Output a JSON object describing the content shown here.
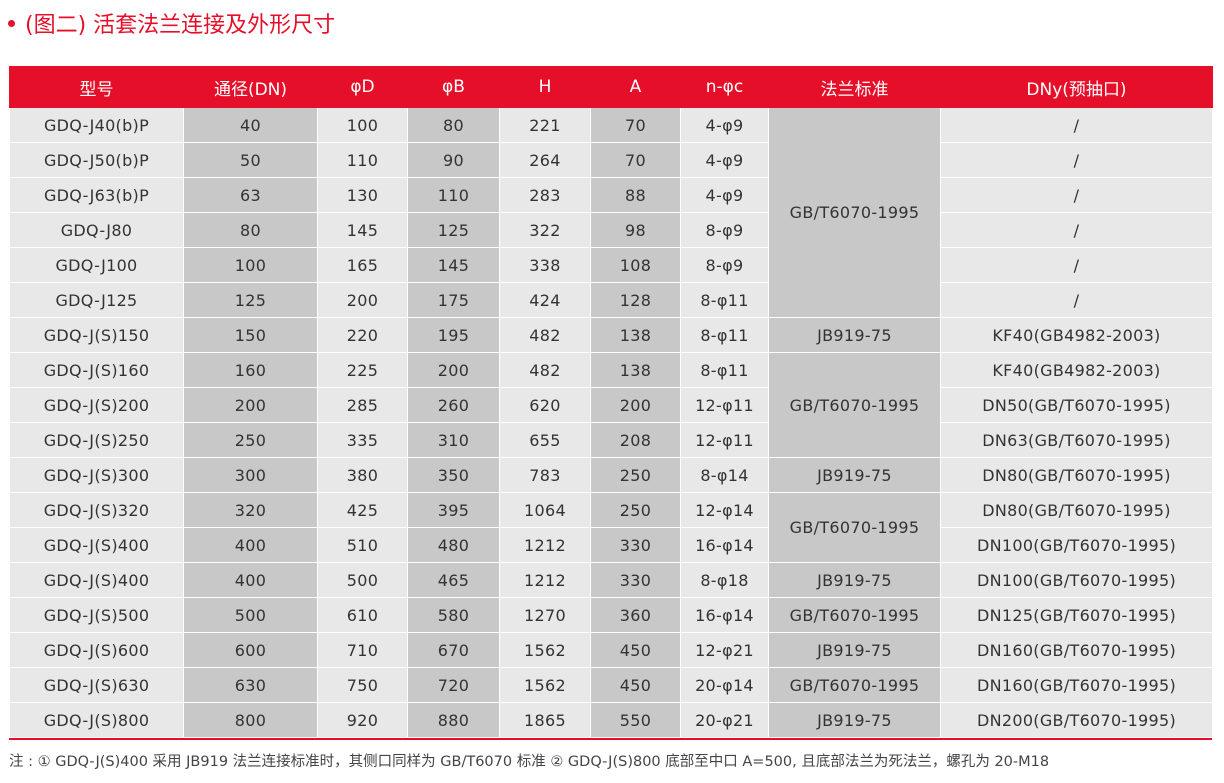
{
  "title": "(图二) 活套法兰连接及外形尺寸",
  "colors": {
    "accent": "#e60f2a",
    "cell_light": "#e8e8e8",
    "cell_dark": "#c8c8c8"
  },
  "table": {
    "headers": [
      "型号",
      "通径(DN)",
      "φD",
      "φB",
      "H",
      "A",
      "n-φc",
      "法兰标准",
      "DNy(预抽口)"
    ],
    "rows": [
      [
        "GDQ-J40(b)P",
        "40",
        "100",
        "80",
        "221",
        "70",
        "4-φ9",
        "/"
      ],
      [
        "GDQ-J50(b)P",
        "50",
        "110",
        "90",
        "264",
        "70",
        "4-φ9",
        "/"
      ],
      [
        "GDQ-J63(b)P",
        "63",
        "130",
        "110",
        "283",
        "88",
        "4-φ9",
        "/"
      ],
      [
        "GDQ-J80",
        "80",
        "145",
        "125",
        "322",
        "98",
        "8-φ9",
        "/"
      ],
      [
        "GDQ-J100",
        "100",
        "165",
        "145",
        "338",
        "108",
        "8-φ9",
        "/"
      ],
      [
        "GDQ-J125",
        "125",
        "200",
        "175",
        "424",
        "128",
        "8-φ11",
        "/"
      ],
      [
        "GDQ-J(S)150",
        "150",
        "220",
        "195",
        "482",
        "138",
        "8-φ11",
        "KF40(GB4982-2003)"
      ],
      [
        "GDQ-J(S)160",
        "160",
        "225",
        "200",
        "482",
        "138",
        "8-φ11",
        "KF40(GB4982-2003)"
      ],
      [
        "GDQ-J(S)200",
        "200",
        "285",
        "260",
        "620",
        "200",
        "12-φ11",
        "DN50(GB/T6070-1995)"
      ],
      [
        "GDQ-J(S)250",
        "250",
        "335",
        "310",
        "655",
        "208",
        "12-φ11",
        "DN63(GB/T6070-1995)"
      ],
      [
        "GDQ-J(S)300",
        "300",
        "380",
        "350",
        "783",
        "250",
        "8-φ14",
        "DN80(GB/T6070-1995)"
      ],
      [
        "GDQ-J(S)320",
        "320",
        "425",
        "395",
        "1064",
        "250",
        "12-φ14",
        "DN80(GB/T6070-1995)"
      ],
      [
        "GDQ-J(S)400",
        "400",
        "510",
        "480",
        "1212",
        "330",
        "16-φ14",
        "DN100(GB/T6070-1995)"
      ],
      [
        "GDQ-J(S)400",
        "400",
        "500",
        "465",
        "1212",
        "330",
        "8-φ18",
        "DN100(GB/T6070-1995)"
      ],
      [
        "GDQ-J(S)500",
        "500",
        "610",
        "580",
        "1270",
        "360",
        "16-φ14",
        "DN125(GB/T6070-1995)"
      ],
      [
        "GDQ-J(S)600",
        "600",
        "710",
        "670",
        "1562",
        "450",
        "12-φ21",
        "DN160(GB/T6070-1995)"
      ],
      [
        "GDQ-J(S)630",
        "630",
        "750",
        "720",
        "1562",
        "450",
        "20-φ14",
        "DN160(GB/T6070-1995)"
      ],
      [
        "GDQ-J(S)800",
        "800",
        "920",
        "880",
        "1865",
        "550",
        "20-φ21",
        "DN200(GB/T6070-1995)"
      ]
    ],
    "standard_groups": [
      {
        "row_start": 0,
        "row_count": 6,
        "text": "GB/T6070-1995"
      },
      {
        "row_start": 6,
        "row_count": 1,
        "text": "JB919-75"
      },
      {
        "row_start": 7,
        "row_count": 3,
        "text": "GB/T6070-1995"
      },
      {
        "row_start": 10,
        "row_count": 1,
        "text": "JB919-75"
      },
      {
        "row_start": 11,
        "row_count": 2,
        "text": "GB/T6070-1995"
      },
      {
        "row_start": 13,
        "row_count": 1,
        "text": "JB919-75"
      },
      {
        "row_start": 14,
        "row_count": 1,
        "text": "GB/T6070-1995"
      },
      {
        "row_start": 15,
        "row_count": 1,
        "text": "JB919-75"
      },
      {
        "row_start": 16,
        "row_count": 1,
        "text": "GB/T6070-1995"
      },
      {
        "row_start": 17,
        "row_count": 1,
        "text": "JB919-75"
      }
    ]
  },
  "note": "注 : ① GDQ-J(S)400 采用 JB919 法兰连接标准时，其侧口同样为 GB/T6070 标准 ② GDQ-J(S)800 底部至中口 A=500, 且底部法兰为死法兰，螺孔为 20-M18"
}
